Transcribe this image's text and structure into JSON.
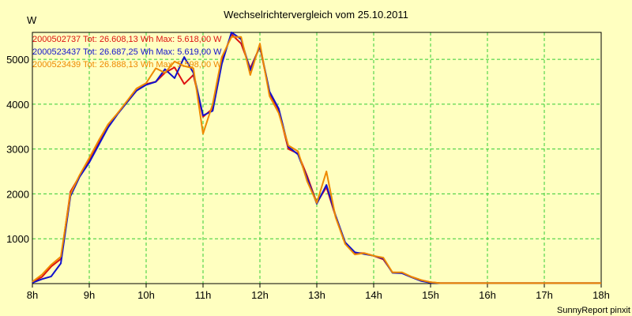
{
  "chart_data": {
    "type": "line",
    "title": "Wechselrichtervergleich vom 25.10.2011",
    "ylabel": "W",
    "xlabel": "",
    "xlim": [
      8,
      18
    ],
    "ylim": [
      0,
      5600
    ],
    "x_ticks": [
      {
        "value": 8,
        "label": "8h"
      },
      {
        "value": 9,
        "label": "9h"
      },
      {
        "value": 10,
        "label": "10h"
      },
      {
        "value": 11,
        "label": "11h"
      },
      {
        "value": 12,
        "label": "12h"
      },
      {
        "value": 13,
        "label": "13h"
      },
      {
        "value": 14,
        "label": "14h"
      },
      {
        "value": 15,
        "label": "15h"
      },
      {
        "value": 16,
        "label": "16h"
      },
      {
        "value": 17,
        "label": "17h"
      },
      {
        "value": 18,
        "label": "18h"
      }
    ],
    "y_ticks": [
      1000,
      2000,
      3000,
      4000,
      5000
    ],
    "grid": true,
    "credit": "SunnyReport pinxit",
    "x": [
      8.0,
      8.17,
      8.33,
      8.5,
      8.67,
      8.83,
      9.0,
      9.17,
      9.33,
      9.5,
      9.67,
      9.83,
      10.0,
      10.17,
      10.33,
      10.5,
      10.67,
      10.83,
      11.0,
      11.17,
      11.33,
      11.5,
      11.67,
      11.83,
      12.0,
      12.17,
      12.33,
      12.5,
      12.67,
      12.83,
      13.0,
      13.17,
      13.33,
      13.5,
      13.67,
      13.83,
      14.0,
      14.17,
      14.33,
      14.5,
      14.67,
      14.83,
      15.0,
      15.17,
      15.33,
      15.5,
      15.67,
      15.83,
      16.0,
      16.17,
      16.33,
      16.5,
      16.67,
      16.83,
      17.0,
      17.17,
      17.33,
      17.5,
      17.67,
      17.83,
      18.0
    ],
    "series": [
      {
        "name": "2000502737",
        "label": "2000502737 Tot: 26.608,13 Wh Max: 5.618,00 W",
        "color": "#dd1111",
        "values": [
          30,
          150,
          380,
          550,
          2050,
          2400,
          2750,
          3150,
          3500,
          3800,
          4050,
          4300,
          4450,
          4500,
          4700,
          4820,
          4450,
          4650,
          3720,
          3900,
          4980,
          5560,
          5350,
          4800,
          5280,
          4250,
          3850,
          3000,
          2900,
          2400,
          1800,
          2150,
          1500,
          900,
          680,
          680,
          620,
          540,
          250,
          240,
          150,
          80,
          30,
          10,
          10,
          10,
          10,
          10,
          10,
          10,
          10,
          10,
          10,
          10,
          10,
          10,
          10,
          10,
          10,
          10,
          10
        ]
      },
      {
        "name": "2000523437",
        "label": "2000523437 Tot: 26.687,25 Wh Max: 5.619,00 W",
        "color": "#1111cc",
        "values": [
          20,
          100,
          160,
          450,
          1950,
          2380,
          2700,
          3100,
          3480,
          3780,
          4050,
          4300,
          4430,
          4500,
          4780,
          4580,
          5050,
          4700,
          3750,
          3850,
          4900,
          5600,
          5450,
          4750,
          5300,
          4280,
          3900,
          3050,
          2880,
          2350,
          1780,
          2200,
          1520,
          920,
          700,
          660,
          620,
          560,
          240,
          230,
          140,
          60,
          20,
          10,
          10,
          10,
          10,
          10,
          10,
          10,
          10,
          10,
          10,
          10,
          10,
          10,
          10,
          10,
          10,
          10,
          10
        ]
      },
      {
        "name": "2000523439",
        "label": "2000523439 Tot: 26.888,13 Wh Max: 5.598,00 W",
        "color": "#ee8800",
        "values": [
          40,
          200,
          420,
          600,
          2000,
          2420,
          2800,
          3200,
          3550,
          3800,
          4080,
          4350,
          4470,
          4800,
          4700,
          4950,
          4850,
          4800,
          3340,
          4000,
          5050,
          5500,
          5500,
          4650,
          5350,
          4180,
          3800,
          3080,
          2950,
          2280,
          1800,
          2500,
          1480,
          880,
          650,
          680,
          620,
          580,
          250,
          250,
          150,
          80,
          30,
          10,
          10,
          10,
          10,
          10,
          10,
          10,
          10,
          10,
          10,
          10,
          10,
          10,
          10,
          10,
          10,
          10,
          10
        ]
      }
    ]
  }
}
